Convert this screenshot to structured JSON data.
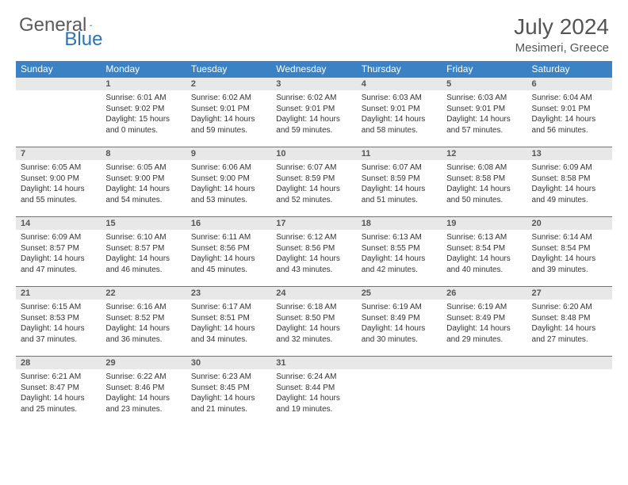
{
  "logo": {
    "text1": "General",
    "text2": "Blue"
  },
  "title": "July 2024",
  "location": "Mesimeri, Greece",
  "colors": {
    "header_bg": "#3a82c4",
    "header_text": "#ffffff",
    "daynum_bg": "#e8e8e8",
    "border": "#3a82c4",
    "body_text": "#333333",
    "title_text": "#555555"
  },
  "weekdays": [
    "Sunday",
    "Monday",
    "Tuesday",
    "Wednesday",
    "Thursday",
    "Friday",
    "Saturday"
  ],
  "weeks": [
    [
      {
        "num": "",
        "sunrise": "",
        "sunset": "",
        "daylight": ""
      },
      {
        "num": "1",
        "sunrise": "Sunrise: 6:01 AM",
        "sunset": "Sunset: 9:02 PM",
        "daylight": "Daylight: 15 hours and 0 minutes."
      },
      {
        "num": "2",
        "sunrise": "Sunrise: 6:02 AM",
        "sunset": "Sunset: 9:01 PM",
        "daylight": "Daylight: 14 hours and 59 minutes."
      },
      {
        "num": "3",
        "sunrise": "Sunrise: 6:02 AM",
        "sunset": "Sunset: 9:01 PM",
        "daylight": "Daylight: 14 hours and 59 minutes."
      },
      {
        "num": "4",
        "sunrise": "Sunrise: 6:03 AM",
        "sunset": "Sunset: 9:01 PM",
        "daylight": "Daylight: 14 hours and 58 minutes."
      },
      {
        "num": "5",
        "sunrise": "Sunrise: 6:03 AM",
        "sunset": "Sunset: 9:01 PM",
        "daylight": "Daylight: 14 hours and 57 minutes."
      },
      {
        "num": "6",
        "sunrise": "Sunrise: 6:04 AM",
        "sunset": "Sunset: 9:01 PM",
        "daylight": "Daylight: 14 hours and 56 minutes."
      }
    ],
    [
      {
        "num": "7",
        "sunrise": "Sunrise: 6:05 AM",
        "sunset": "Sunset: 9:00 PM",
        "daylight": "Daylight: 14 hours and 55 minutes."
      },
      {
        "num": "8",
        "sunrise": "Sunrise: 6:05 AM",
        "sunset": "Sunset: 9:00 PM",
        "daylight": "Daylight: 14 hours and 54 minutes."
      },
      {
        "num": "9",
        "sunrise": "Sunrise: 6:06 AM",
        "sunset": "Sunset: 9:00 PM",
        "daylight": "Daylight: 14 hours and 53 minutes."
      },
      {
        "num": "10",
        "sunrise": "Sunrise: 6:07 AM",
        "sunset": "Sunset: 8:59 PM",
        "daylight": "Daylight: 14 hours and 52 minutes."
      },
      {
        "num": "11",
        "sunrise": "Sunrise: 6:07 AM",
        "sunset": "Sunset: 8:59 PM",
        "daylight": "Daylight: 14 hours and 51 minutes."
      },
      {
        "num": "12",
        "sunrise": "Sunrise: 6:08 AM",
        "sunset": "Sunset: 8:58 PM",
        "daylight": "Daylight: 14 hours and 50 minutes."
      },
      {
        "num": "13",
        "sunrise": "Sunrise: 6:09 AM",
        "sunset": "Sunset: 8:58 PM",
        "daylight": "Daylight: 14 hours and 49 minutes."
      }
    ],
    [
      {
        "num": "14",
        "sunrise": "Sunrise: 6:09 AM",
        "sunset": "Sunset: 8:57 PM",
        "daylight": "Daylight: 14 hours and 47 minutes."
      },
      {
        "num": "15",
        "sunrise": "Sunrise: 6:10 AM",
        "sunset": "Sunset: 8:57 PM",
        "daylight": "Daylight: 14 hours and 46 minutes."
      },
      {
        "num": "16",
        "sunrise": "Sunrise: 6:11 AM",
        "sunset": "Sunset: 8:56 PM",
        "daylight": "Daylight: 14 hours and 45 minutes."
      },
      {
        "num": "17",
        "sunrise": "Sunrise: 6:12 AM",
        "sunset": "Sunset: 8:56 PM",
        "daylight": "Daylight: 14 hours and 43 minutes."
      },
      {
        "num": "18",
        "sunrise": "Sunrise: 6:13 AM",
        "sunset": "Sunset: 8:55 PM",
        "daylight": "Daylight: 14 hours and 42 minutes."
      },
      {
        "num": "19",
        "sunrise": "Sunrise: 6:13 AM",
        "sunset": "Sunset: 8:54 PM",
        "daylight": "Daylight: 14 hours and 40 minutes."
      },
      {
        "num": "20",
        "sunrise": "Sunrise: 6:14 AM",
        "sunset": "Sunset: 8:54 PM",
        "daylight": "Daylight: 14 hours and 39 minutes."
      }
    ],
    [
      {
        "num": "21",
        "sunrise": "Sunrise: 6:15 AM",
        "sunset": "Sunset: 8:53 PM",
        "daylight": "Daylight: 14 hours and 37 minutes."
      },
      {
        "num": "22",
        "sunrise": "Sunrise: 6:16 AM",
        "sunset": "Sunset: 8:52 PM",
        "daylight": "Daylight: 14 hours and 36 minutes."
      },
      {
        "num": "23",
        "sunrise": "Sunrise: 6:17 AM",
        "sunset": "Sunset: 8:51 PM",
        "daylight": "Daylight: 14 hours and 34 minutes."
      },
      {
        "num": "24",
        "sunrise": "Sunrise: 6:18 AM",
        "sunset": "Sunset: 8:50 PM",
        "daylight": "Daylight: 14 hours and 32 minutes."
      },
      {
        "num": "25",
        "sunrise": "Sunrise: 6:19 AM",
        "sunset": "Sunset: 8:49 PM",
        "daylight": "Daylight: 14 hours and 30 minutes."
      },
      {
        "num": "26",
        "sunrise": "Sunrise: 6:19 AM",
        "sunset": "Sunset: 8:49 PM",
        "daylight": "Daylight: 14 hours and 29 minutes."
      },
      {
        "num": "27",
        "sunrise": "Sunrise: 6:20 AM",
        "sunset": "Sunset: 8:48 PM",
        "daylight": "Daylight: 14 hours and 27 minutes."
      }
    ],
    [
      {
        "num": "28",
        "sunrise": "Sunrise: 6:21 AM",
        "sunset": "Sunset: 8:47 PM",
        "daylight": "Daylight: 14 hours and 25 minutes."
      },
      {
        "num": "29",
        "sunrise": "Sunrise: 6:22 AM",
        "sunset": "Sunset: 8:46 PM",
        "daylight": "Daylight: 14 hours and 23 minutes."
      },
      {
        "num": "30",
        "sunrise": "Sunrise: 6:23 AM",
        "sunset": "Sunset: 8:45 PM",
        "daylight": "Daylight: 14 hours and 21 minutes."
      },
      {
        "num": "31",
        "sunrise": "Sunrise: 6:24 AM",
        "sunset": "Sunset: 8:44 PM",
        "daylight": "Daylight: 14 hours and 19 minutes."
      },
      {
        "num": "",
        "sunrise": "",
        "sunset": "",
        "daylight": ""
      },
      {
        "num": "",
        "sunrise": "",
        "sunset": "",
        "daylight": ""
      },
      {
        "num": "",
        "sunrise": "",
        "sunset": "",
        "daylight": ""
      }
    ]
  ]
}
